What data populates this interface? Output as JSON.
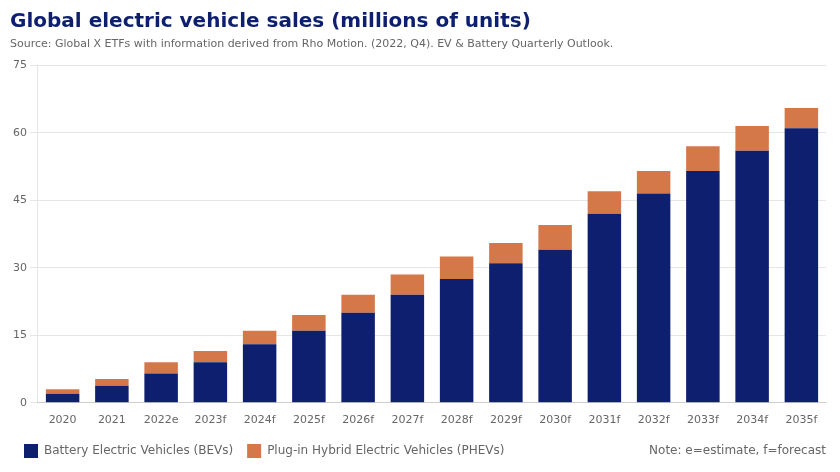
{
  "chart_data": {
    "type": "bar",
    "title": "Global electric vehicle sales (millions of units)",
    "subtitle": "Source: Global X ETFs with information derived from Rho Motion. (2022, Q4). EV & Battery Quarterly Outlook.",
    "annotations": [
      "Note: e=estimate, f=forecast"
    ],
    "categories": [
      "2020",
      "2021",
      "2022e",
      "2023f",
      "2024f",
      "2025f",
      "2026f",
      "2027f",
      "2028f",
      "2029f",
      "2030f",
      "2031f",
      "2032f",
      "2033f",
      "2034f",
      "2035f"
    ],
    "series": [
      {
        "name": "Battery Electric Vehicles (BEVs)",
        "color": "#0d1f6e",
        "values": [
          2.0,
          3.8,
          6.5,
          9.0,
          13.0,
          16.0,
          20.0,
          24.0,
          27.5,
          31.0,
          34.0,
          42.0,
          46.5,
          51.5,
          56.0,
          61.0
        ]
      },
      {
        "name": "Plug-in Hybrid Electric Vehicles (PHEVs)",
        "color": "#d4784a",
        "values": [
          1.0,
          1.5,
          2.5,
          2.5,
          3.0,
          3.5,
          4.0,
          4.5,
          5.0,
          4.5,
          5.5,
          5.0,
          5.0,
          5.5,
          5.5,
          4.5
        ]
      }
    ],
    "stacked": true,
    "ylim": [
      0,
      75
    ],
    "yticks": [
      0,
      15,
      30,
      45,
      60,
      75
    ],
    "grid": true,
    "legend": "lower left"
  }
}
